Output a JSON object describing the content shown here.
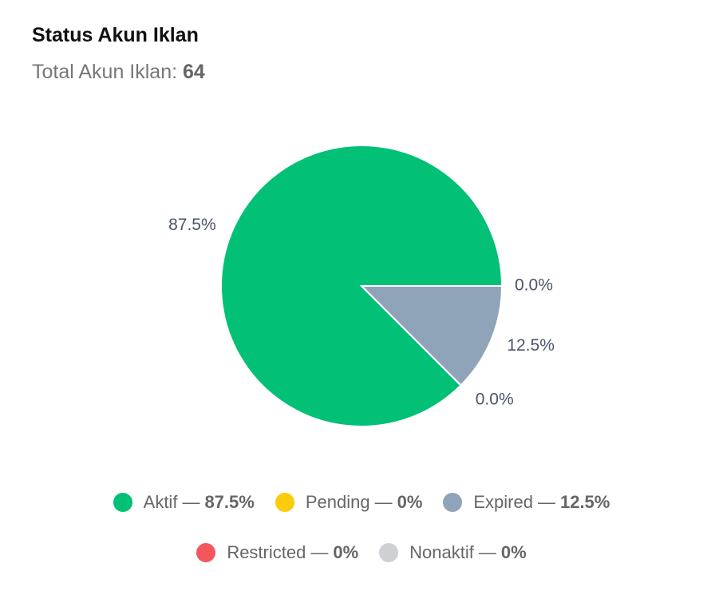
{
  "chart_data": {
    "type": "pie",
    "title": "Status Akun Iklan",
    "subtitle_label": "Total Akun Iklan:",
    "total": 64,
    "categories": [
      "Aktif",
      "Pending",
      "Expired",
      "Restricted",
      "Nonaktif"
    ],
    "values": [
      87.5,
      0,
      12.5,
      0,
      0
    ],
    "value_labels": [
      "87.5%",
      "0.0%",
      "12.5%",
      "0.0%",
      null
    ],
    "legend_separator": "—",
    "legend_value_labels": [
      "87.5%",
      "0%",
      "12.5%",
      "0%",
      "0%"
    ],
    "colors": [
      "#02c076",
      "#fccb0b",
      "#8fa4b8",
      "#f5555d",
      "#cfd0d4"
    ]
  }
}
